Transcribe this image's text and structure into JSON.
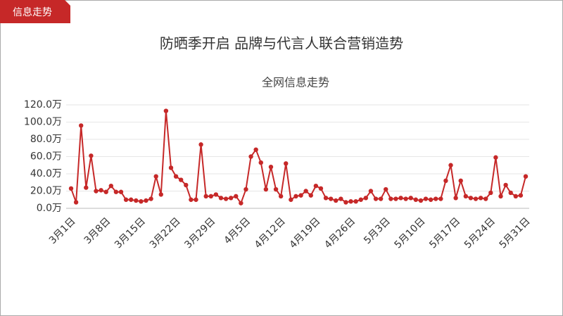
{
  "header": {
    "badge": "信息走势"
  },
  "chart_data": {
    "type": "line",
    "title": "防晒季开启 品牌与代言人联合营销造势",
    "subtitle": "全网信息走势",
    "categories": [
      "3月1日",
      null,
      null,
      null,
      null,
      null,
      null,
      "3月8日",
      null,
      null,
      null,
      null,
      null,
      null,
      "3月15日",
      null,
      null,
      null,
      null,
      null,
      null,
      "3月22日",
      null,
      null,
      null,
      null,
      null,
      null,
      "3月29日",
      null,
      null,
      null,
      null,
      null,
      null,
      "4月5日",
      null,
      null,
      null,
      null,
      null,
      null,
      "4月12日",
      null,
      null,
      null,
      null,
      null,
      null,
      "4月19日",
      null,
      null,
      null,
      null,
      null,
      null,
      "4月26日",
      null,
      null,
      null,
      null,
      null,
      null,
      "5月3日",
      null,
      null,
      null,
      null,
      null,
      null,
      "5月10日",
      null,
      null,
      null,
      null,
      null,
      null,
      "5月17日",
      null,
      null,
      null,
      null,
      null,
      null,
      "5月24日",
      null,
      null,
      null,
      null,
      null,
      null,
      "5月31日"
    ],
    "series": [
      {
        "name": "全网信息走势",
        "color": "#c62828",
        "values": [
          23,
          7,
          96,
          24,
          61,
          20,
          21,
          19,
          26,
          19,
          19,
          10,
          10,
          9,
          8,
          9,
          11,
          37,
          16,
          113,
          47,
          37,
          33,
          27,
          10,
          10,
          74,
          14,
          14,
          16,
          12,
          11,
          12,
          14,
          6,
          22,
          60,
          68,
          53,
          22,
          48,
          22,
          14,
          52,
          10,
          14,
          15,
          20,
          15,
          26,
          23,
          12,
          11,
          9,
          11,
          7,
          8,
          8,
          10,
          12,
          20,
          11,
          11,
          22,
          11,
          11,
          12,
          11,
          12,
          10,
          9,
          11,
          10,
          11,
          11,
          32,
          50,
          12,
          32,
          14,
          12,
          11,
          12,
          11,
          18,
          59,
          14,
          27,
          18,
          14,
          15,
          37
        ]
      }
    ],
    "ylim": [
      0,
      120
    ],
    "yticks": [
      {
        "value": 0,
        "label": "0.0万"
      },
      {
        "value": 20,
        "label": "20.0万"
      },
      {
        "value": 40,
        "label": "40.0万"
      },
      {
        "value": 60,
        "label": "60.0万"
      },
      {
        "value": 80,
        "label": "80.0万"
      },
      {
        "value": 100,
        "label": "100.0万"
      },
      {
        "value": 120,
        "label": "120.0万"
      }
    ],
    "grid": true
  }
}
